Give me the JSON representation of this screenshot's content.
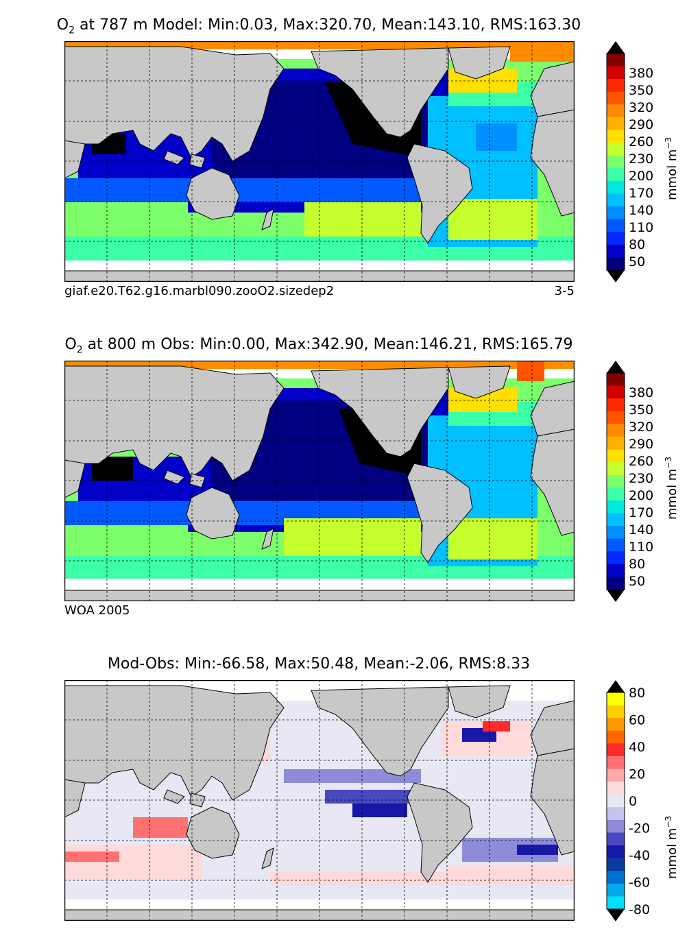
{
  "panels": [
    {
      "id": "model",
      "title_prefix": "O",
      "title_sub": "2",
      "title_rest": " at 787 m Model: Min:0.03, Max:320.70, Mean:143.10, RMS:163.30",
      "footer_left": "giaf.e20.T62.g16.marbl090.zooO2.sizedep2",
      "footer_right": "3-5"
    },
    {
      "id": "obs",
      "title_prefix": "O",
      "title_sub": "2",
      "title_rest": " at 800 m Obs: Min:0.00, Max:342.90, Mean:146.21, RMS:165.79",
      "footer_left": "WOA 2005",
      "footer_right": ""
    },
    {
      "id": "diff",
      "title_prefix": "",
      "title_sub": "",
      "title_rest": "Mod-Obs: Min:-66.58, Max:50.48, Mean:-2.06, RMS:8.33",
      "footer_left": "",
      "footer_right": ""
    }
  ],
  "colorbars": {
    "oxygen": {
      "ticks": [
        "380",
        "350",
        "320",
        "290",
        "260",
        "230",
        "200",
        "170",
        "140",
        "110",
        "80",
        "50"
      ],
      "unit": "mmol m",
      "unit_exp": "−3",
      "colors": [
        "#800000",
        "#d40000",
        "#ff2a00",
        "#ff5500",
        "#ff8c00",
        "#ffb000",
        "#ffe000",
        "#c6ff2e",
        "#7cff6b",
        "#3cffa8",
        "#00e8e0",
        "#00c0ff",
        "#0090ff",
        "#005aff",
        "#0028ff",
        "#0000c8",
        "#000080"
      ]
    },
    "difference": {
      "ticks": [
        "80",
        "60",
        "40",
        "20",
        "0",
        "-20",
        "-40",
        "-60",
        "-80"
      ],
      "unit": "mmol m",
      "unit_exp": "−3",
      "colors": [
        "#ffff00",
        "#ffd000",
        "#ff9900",
        "#ff6600",
        "#ff2a2a",
        "#ff7070",
        "#ffaaaa",
        "#ffdada",
        "#e8e8f4",
        "#c4c4ec",
        "#8c8cd8",
        "#4848c0",
        "#1818a8",
        "#0a3aa0",
        "#0070d0",
        "#00a8ea",
        "#00e0ff"
      ]
    }
  },
  "colors": {
    "land": "#c8c8c8",
    "ice_gap": "#ffffff",
    "arctic": "#ff8c00",
    "deep_low": "#000000"
  }
}
